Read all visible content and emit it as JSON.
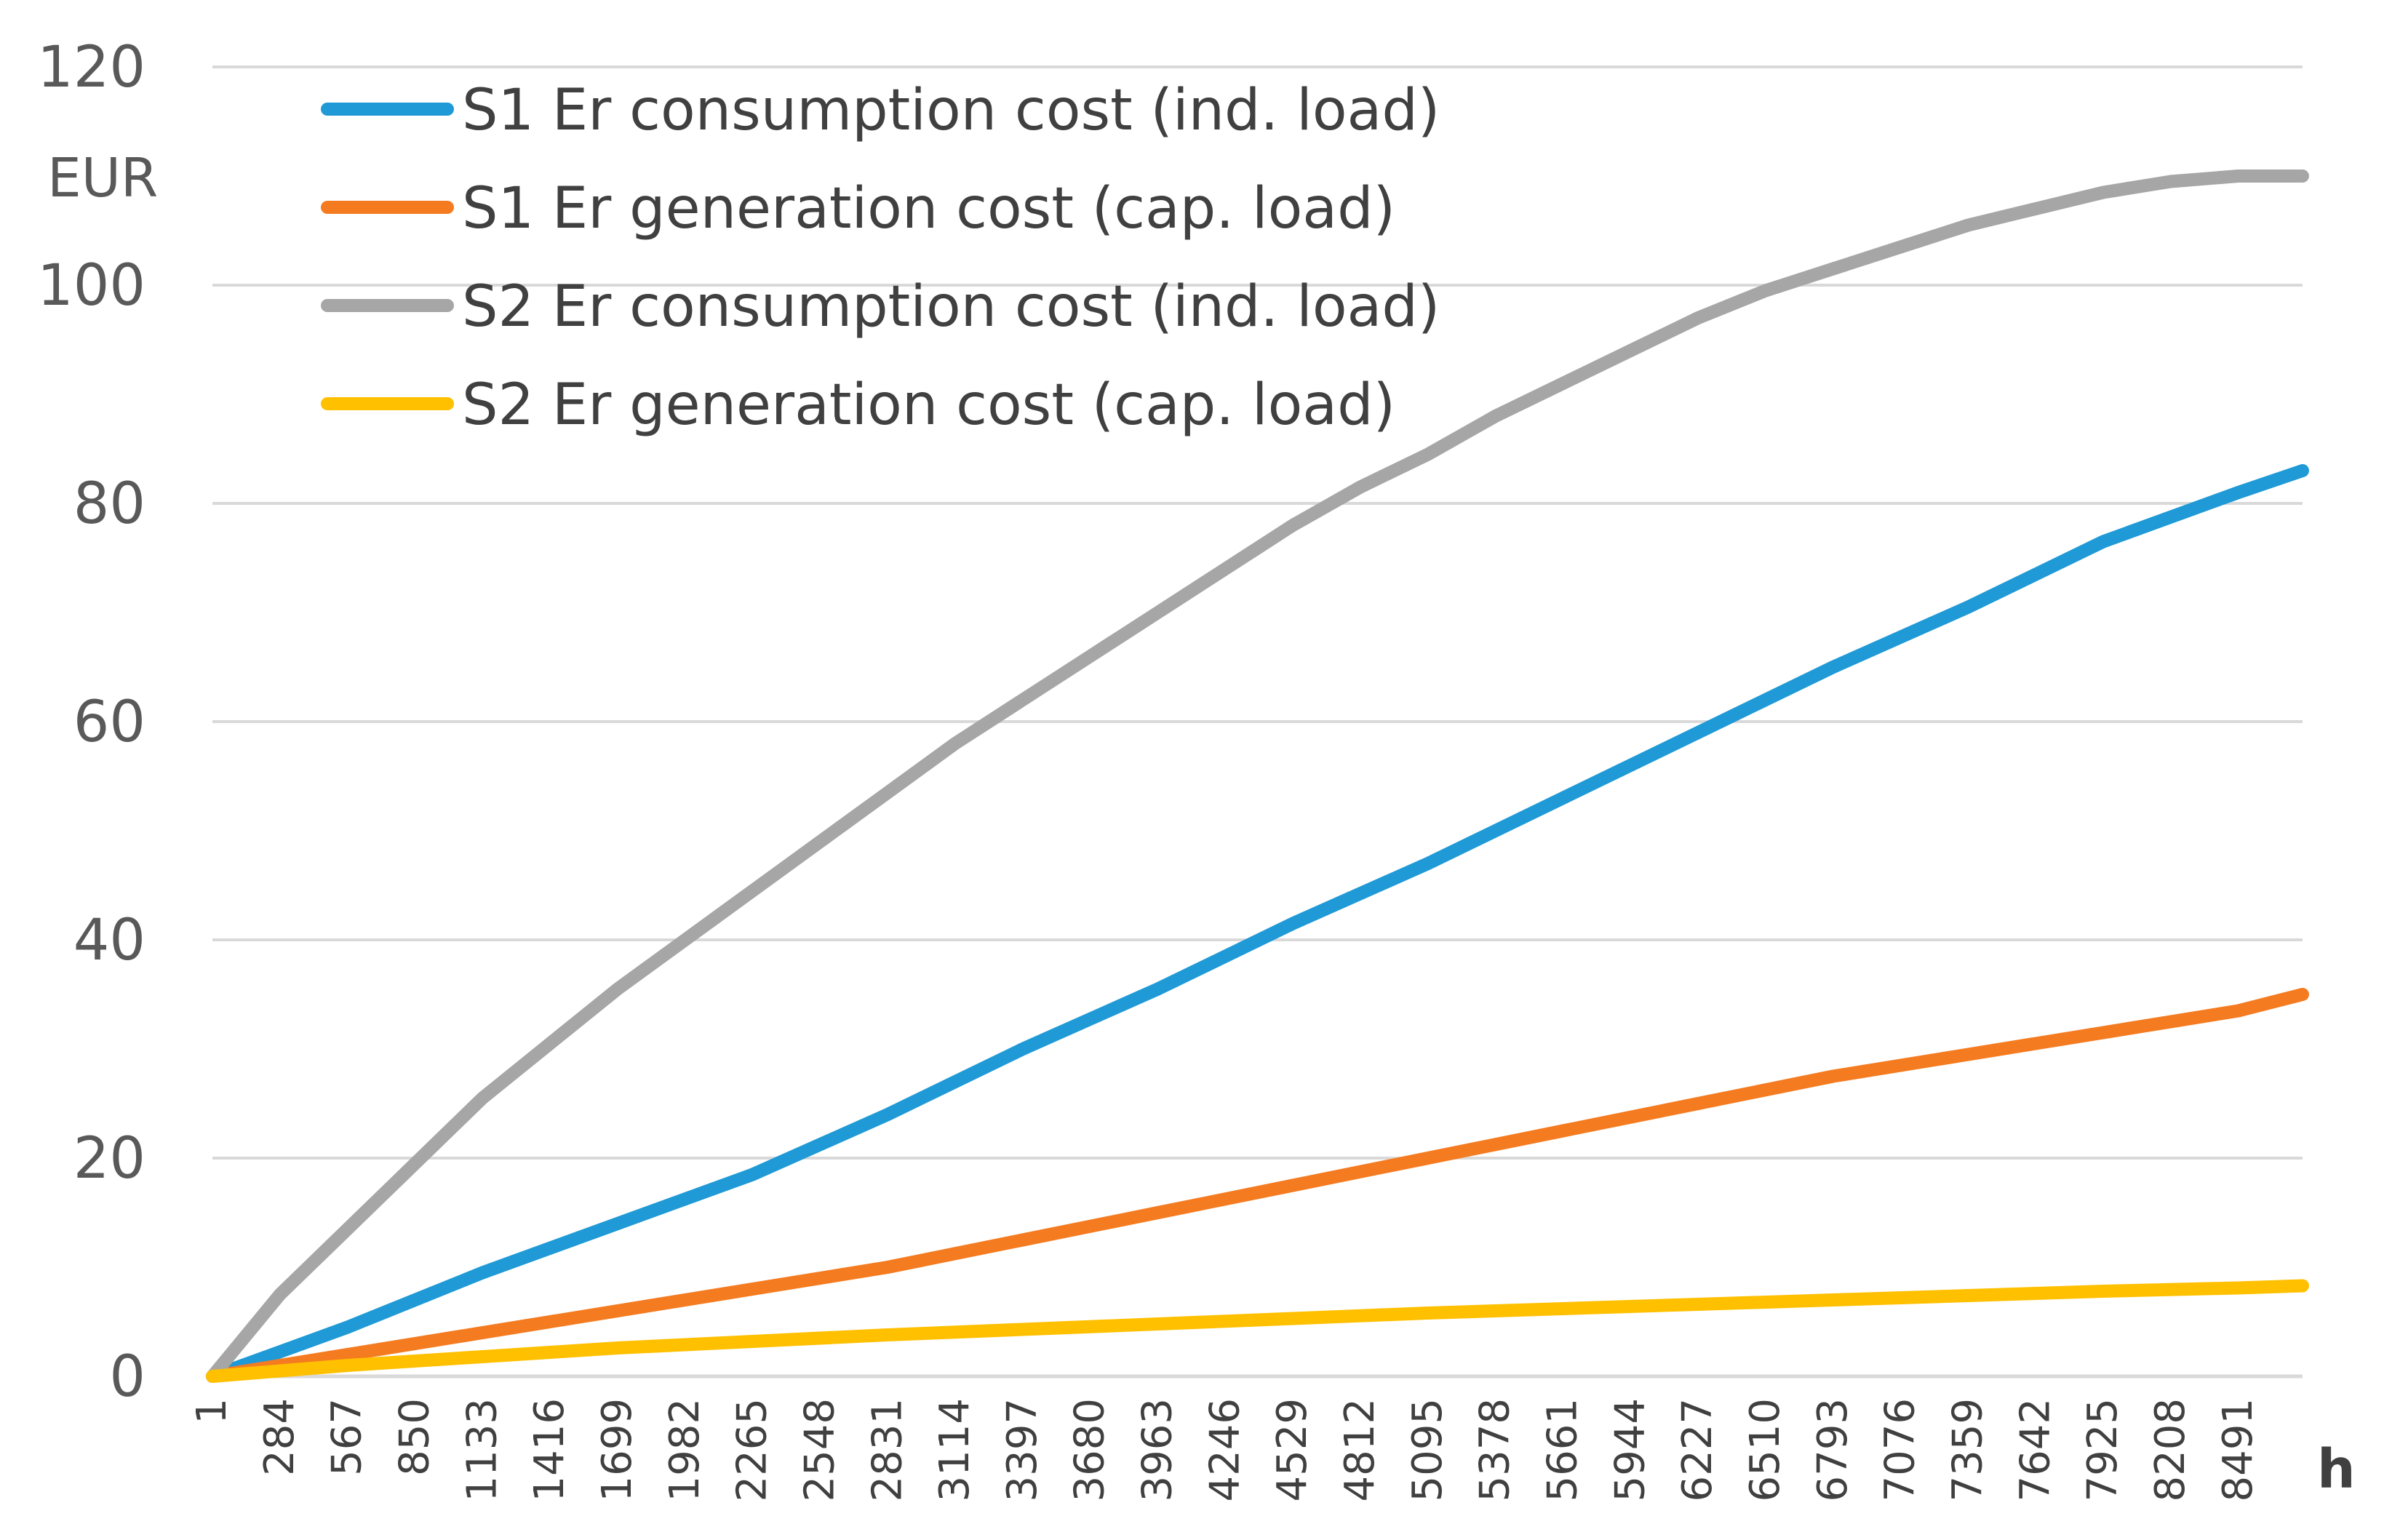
{
  "chart_data": {
    "type": "line",
    "title": "",
    "xlabel": "h",
    "ylabel": "EUR",
    "xlim": [
      1,
      8760
    ],
    "ylim": [
      0,
      120
    ],
    "yticks": [
      0,
      20,
      40,
      60,
      80,
      100,
      120
    ],
    "xtick_labels": [
      "1",
      "284",
      "567",
      "850",
      "1133",
      "1416",
      "1699",
      "1982",
      "2265",
      "2548",
      "2831",
      "3114",
      "3397",
      "3680",
      "3963",
      "4246",
      "4529",
      "4812",
      "5095",
      "5378",
      "5661",
      "5944",
      "6227",
      "6510",
      "6793",
      "7076",
      "7359",
      "7642",
      "7925",
      "8208",
      "8491"
    ],
    "legend_position": "top-left",
    "grid": true,
    "series": [
      {
        "name": "S1 Er consumption cost (ind. load)",
        "color": "#1f9ad6",
        "x": [
          1,
          567,
          1133,
          1699,
          2265,
          2831,
          3397,
          3963,
          4529,
          5095,
          5661,
          6227,
          6793,
          7359,
          7925,
          8491,
          8760
        ],
        "values": [
          0,
          4.5,
          9.5,
          14,
          18.5,
          24,
          30,
          35.5,
          41.5,
          47,
          53,
          59,
          65,
          70.5,
          76.5,
          81,
          83
        ]
      },
      {
        "name": "S1 Er generation cost (cap. load)",
        "color": "#f47b20",
        "x": [
          1,
          567,
          1133,
          1699,
          2265,
          2831,
          3397,
          3963,
          4529,
          5095,
          5661,
          6227,
          6793,
          7359,
          7925,
          8491,
          8760
        ],
        "values": [
          0,
          2,
          4,
          6,
          8,
          10,
          12.5,
          15,
          17.5,
          20,
          22.5,
          25,
          27.5,
          29.5,
          31.5,
          33.5,
          35
        ]
      },
      {
        "name": "S2 Er consumption cost (ind. load)",
        "color": "#a6a6a6",
        "x": [
          1,
          284,
          567,
          850,
          1133,
          1416,
          1699,
          1982,
          2265,
          2548,
          2831,
          3114,
          3397,
          3680,
          3963,
          4246,
          4529,
          4812,
          5095,
          5378,
          5661,
          5944,
          6227,
          6510,
          6793,
          7076,
          7359,
          7642,
          7925,
          8208,
          8491,
          8760
        ],
        "values": [
          0,
          7.5,
          13.5,
          19.5,
          25.5,
          30.5,
          35.5,
          40,
          44.5,
          49,
          53.5,
          58,
          62,
          66,
          70,
          74,
          78,
          81.5,
          84.5,
          88,
          91,
          94,
          97,
          99.5,
          101.5,
          103.5,
          105.5,
          107,
          108.5,
          109.5,
          110,
          110
        ]
      },
      {
        "name": "S2 Er generation cost (cap. load)",
        "color": "#ffc000",
        "x": [
          1,
          567,
          1133,
          1699,
          2265,
          2831,
          3397,
          3963,
          4529,
          5095,
          5661,
          6227,
          6793,
          7359,
          7925,
          8491,
          8760
        ],
        "values": [
          0,
          1,
          1.8,
          2.6,
          3.2,
          3.8,
          4.3,
          4.8,
          5.3,
          5.8,
          6.2,
          6.6,
          7,
          7.4,
          7.8,
          8.1,
          8.3
        ]
      }
    ]
  }
}
